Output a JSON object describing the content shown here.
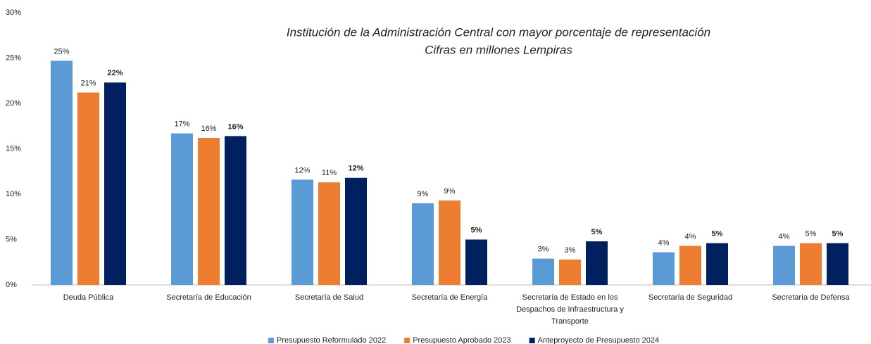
{
  "chart_data": {
    "type": "bar",
    "title": "Institución de la Administración Central con mayor porcentaje de representación",
    "subtitle": "Cifras en millones Lempiras",
    "categories": [
      "Deuda Pública",
      "Secretaría de Educación",
      "Secretaría de Salud",
      "Secretaría de Energía",
      "Secretaría de Estado en los Despachos de Infraestructura y Transporte",
      "Secretaría de Seguridad",
      "Secretaría de Defensa"
    ],
    "series": [
      {
        "name": "Presupuesto Reformulado 2022",
        "color": "#5b9bd5",
        "values": [
          24.7,
          16.7,
          11.6,
          9.0,
          2.9,
          3.6,
          4.3
        ],
        "value_labels": [
          "25%",
          "17%",
          "12%",
          "9%",
          "3%",
          "4%",
          "4%"
        ]
      },
      {
        "name": "Presupuesto Aprobado 2023",
        "color": "#ed7d31",
        "values": [
          21.2,
          16.2,
          11.3,
          9.3,
          2.8,
          4.3,
          4.6
        ],
        "value_labels": [
          "21%",
          "16%",
          "11%",
          "9%",
          "3%",
          "4%",
          "5%"
        ]
      },
      {
        "name": "Anteproyecto de Presupuesto 2024",
        "color": "#002060",
        "values": [
          22.3,
          16.4,
          11.8,
          5.0,
          4.8,
          4.6,
          4.6
        ],
        "value_labels": [
          "22%",
          "16%",
          "12%",
          "5%",
          "5%",
          "5%",
          "5%"
        ]
      }
    ],
    "ylim": [
      0,
      30
    ],
    "yticks": [
      {
        "value": 0,
        "label": "0%"
      },
      {
        "value": 5,
        "label": "5%"
      },
      {
        "value": 10,
        "label": "10%"
      },
      {
        "value": 15,
        "label": "15%"
      },
      {
        "value": 20,
        "label": "20%"
      },
      {
        "value": 25,
        "label": "25%"
      },
      {
        "value": 30,
        "label": "30%"
      }
    ],
    "grid": false,
    "legend": "bottom"
  }
}
